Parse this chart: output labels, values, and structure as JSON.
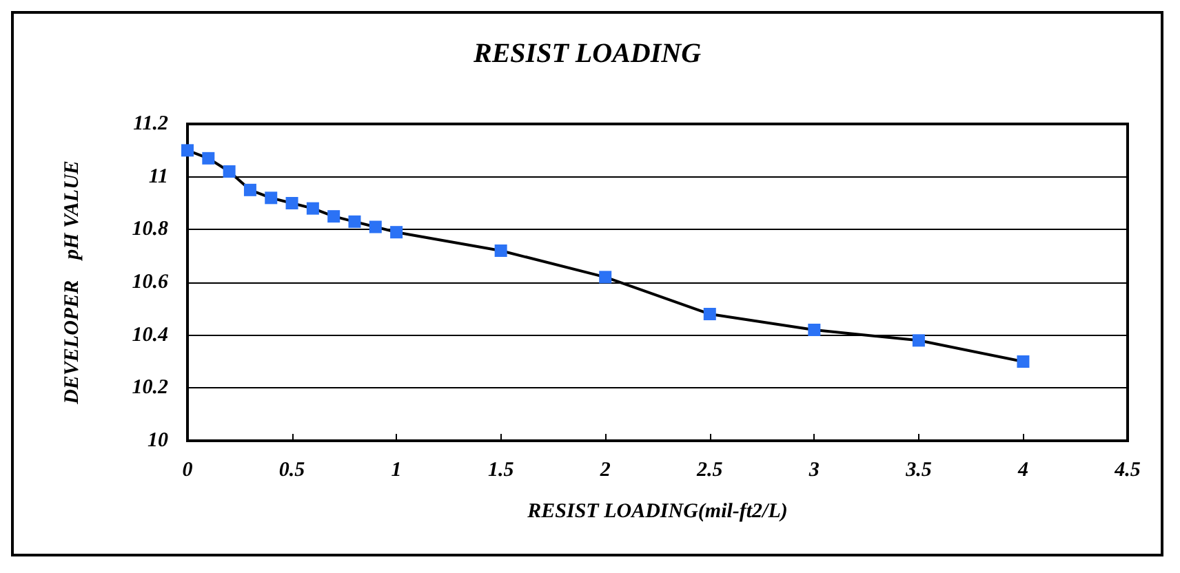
{
  "chart_data": {
    "type": "line",
    "title": "RESIST LOADING",
    "xlabel": "RESIST LOADING(mil-ft2/L)",
    "ylabel": "DEVELOPER    pH VALUE",
    "x": [
      0,
      0.1,
      0.2,
      0.3,
      0.4,
      0.5,
      0.6,
      0.7,
      0.8,
      0.9,
      1,
      1.5,
      2,
      2.5,
      3,
      3.5,
      4
    ],
    "series": [
      {
        "color": "#2b72f5",
        "values": [
          11.1,
          11.07,
          11.02,
          10.95,
          10.92,
          10.9,
          10.88,
          10.85,
          10.83,
          10.81,
          10.79,
          10.72,
          10.62,
          10.48,
          10.42,
          10.38,
          10.3
        ]
      }
    ],
    "xlim": [
      0,
      4.5
    ],
    "xticks": [
      0,
      0.5,
      1,
      1.5,
      2,
      2.5,
      3,
      3.5,
      4,
      4.5
    ],
    "ylim": [
      10,
      11.2
    ],
    "yticks": [
      10,
      10.2,
      10.4,
      10.6,
      10.8,
      11,
      11.2
    ],
    "grid": "y",
    "marker": "square",
    "line_style": "solid"
  }
}
